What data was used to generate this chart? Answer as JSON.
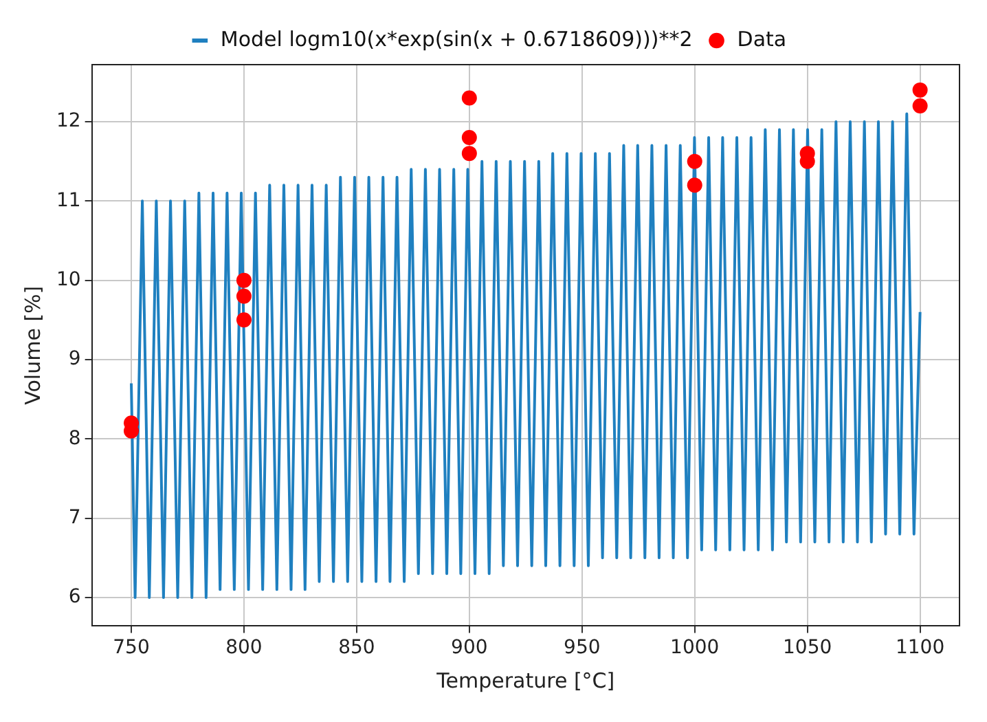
{
  "chart_data": {
    "type": "line",
    "xlabel": "Temperature [°C]",
    "ylabel": "Volume [%]",
    "xlim": [
      732.5,
      1117.5
    ],
    "ylim": [
      5.64,
      12.72
    ],
    "xticks": [
      750,
      800,
      850,
      900,
      950,
      1000,
      1050,
      1100
    ],
    "yticks": [
      6,
      7,
      8,
      9,
      10,
      11,
      12
    ],
    "grid": true,
    "legend": "top",
    "series": [
      {
        "name": "Model logm10(x*exp(sin(x + 0.6718609)))**2",
        "type": "line",
        "marker": "none",
        "line_style": "solid",
        "color": "#1f80c0",
        "x": [
          750,
          751.7,
          754.9,
          758.0,
          761.1,
          764.3,
          767.4,
          770.6,
          773.7,
          776.9,
          780.0,
          783.2,
          786.3,
          789.4,
          792.5,
          795.7,
          798.8,
          802.0,
          805.1,
          808.3,
          811.4,
          814.6,
          817.7,
          820.9,
          824.0,
          827.1,
          830.2,
          833.4,
          836.5,
          839.7,
          842.8,
          846.0,
          849.1,
          852.3,
          855.4,
          858.6,
          861.7,
          864.8,
          867.9,
          871.1,
          874.2,
          877.4,
          880.5,
          883.7,
          886.8,
          890.0,
          893.1,
          896.2,
          899.3,
          902.5,
          905.6,
          908.8,
          911.9,
          915.1,
          918.2,
          921.4,
          924.5,
          927.7,
          930.8,
          933.9,
          937.0,
          940.2,
          943.3,
          946.5,
          949.6,
          952.8,
          955.9,
          959.1,
          962.2,
          965.4,
          968.5,
          971.6,
          974.7,
          977.9,
          981.0,
          984.2,
          987.3,
          990.5,
          993.6,
          996.8,
          999.9,
          1003.1,
          1006.2,
          1009.3,
          1012.4,
          1015.6,
          1018.7,
          1021.9,
          1025.0,
          1028.2,
          1031.3,
          1034.5,
          1037.6,
          1040.7,
          1043.8,
          1047.0,
          1050.1,
          1053.3,
          1056.4,
          1059.6,
          1062.7,
          1065.9,
          1069.0,
          1072.2,
          1075.3,
          1078.4,
          1081.5,
          1084.7,
          1087.8,
          1091.0,
          1094.1,
          1097.3,
          1100
        ],
        "values": [
          8.7,
          6.0,
          11.0,
          6.0,
          11.0,
          6.0,
          11.0,
          6.0,
          11.0,
          6.0,
          11.1,
          6.0,
          11.1,
          6.1,
          11.1,
          6.1,
          11.1,
          6.1,
          11.1,
          6.1,
          11.2,
          6.1,
          11.2,
          6.1,
          11.2,
          6.1,
          11.2,
          6.2,
          11.2,
          6.2,
          11.3,
          6.2,
          11.3,
          6.2,
          11.3,
          6.2,
          11.3,
          6.2,
          11.3,
          6.2,
          11.4,
          6.3,
          11.4,
          6.3,
          11.4,
          6.3,
          11.4,
          6.3,
          11.4,
          6.3,
          11.5,
          6.3,
          11.5,
          6.4,
          11.5,
          6.4,
          11.5,
          6.4,
          11.5,
          6.4,
          11.6,
          6.4,
          11.6,
          6.4,
          11.6,
          6.4,
          11.6,
          6.5,
          11.6,
          6.5,
          11.7,
          6.5,
          11.7,
          6.5,
          11.7,
          6.5,
          11.7,
          6.5,
          11.7,
          6.5,
          11.8,
          6.6,
          11.8,
          6.6,
          11.8,
          6.6,
          11.8,
          6.6,
          11.8,
          6.6,
          11.9,
          6.6,
          11.9,
          6.7,
          11.9,
          6.7,
          11.9,
          6.7,
          11.9,
          6.7,
          12.0,
          6.7,
          12.0,
          6.7,
          12.0,
          6.7,
          12.0,
          6.8,
          12.0,
          6.8,
          12.1,
          6.8,
          9.6
        ]
      },
      {
        "name": "Data",
        "type": "scatter",
        "marker": "circle",
        "color": "#ff0000",
        "x": [
          750,
          750,
          800,
          800,
          800,
          900,
          900,
          900,
          1000,
          1000,
          1050,
          1050,
          1100,
          1100
        ],
        "values": [
          8.1,
          8.2,
          9.5,
          9.8,
          10.0,
          11.6,
          11.8,
          12.3,
          11.2,
          11.5,
          11.5,
          11.6,
          12.2,
          12.4
        ]
      }
    ]
  }
}
